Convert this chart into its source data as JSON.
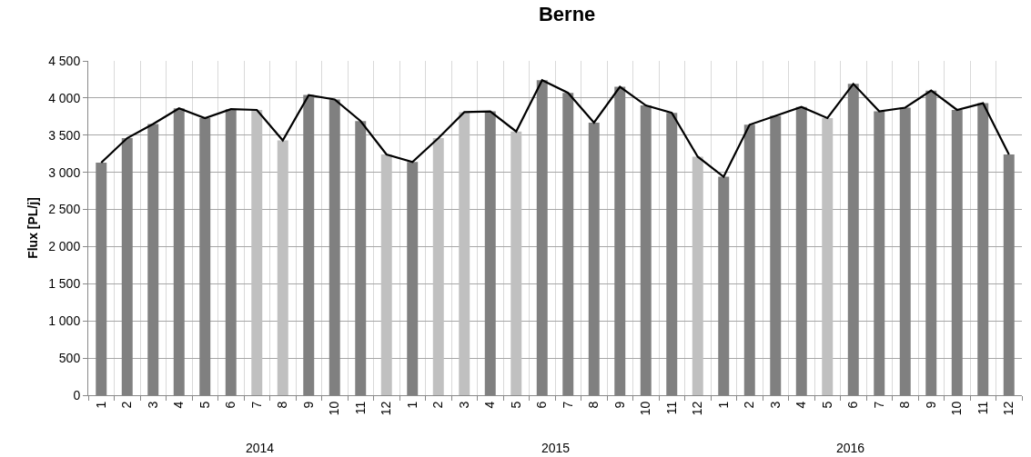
{
  "chart_data": {
    "type": "bar",
    "title": "Berne",
    "ylabel": "Flux [PL/j]",
    "categories": [
      "1",
      "2",
      "3",
      "4",
      "5",
      "6",
      "7",
      "8",
      "9",
      "10",
      "11",
      "12",
      "1",
      "2",
      "3",
      "4",
      "5",
      "6",
      "7",
      "8",
      "9",
      "10",
      "11",
      "12",
      "1",
      "2",
      "3",
      "4",
      "5",
      "6",
      "7",
      "8",
      "9",
      "10",
      "11",
      "12"
    ],
    "series": [
      {
        "colors": [
          "#808080",
          "#808080",
          "#808080",
          "#808080",
          "#808080",
          "#808080",
          "#c0c0c0",
          "#c0c0c0",
          "#808080",
          "#808080",
          "#808080",
          "#c0c0c0",
          "#808080",
          "#c0c0c0",
          "#c0c0c0",
          "#808080",
          "#c0c0c0",
          "#808080",
          "#808080",
          "#808080",
          "#808080",
          "#808080",
          "#808080",
          "#c0c0c0",
          "#808080",
          "#808080",
          "#808080",
          "#808080",
          "#c0c0c0",
          "#808080",
          "#808080",
          "#808080",
          "#808080",
          "#808080",
          "#808080",
          "#808080"
        ],
        "values": [
          3130,
          3460,
          3650,
          3860,
          3730,
          3850,
          3840,
          3430,
          4040,
          3980,
          3690,
          3240,
          3140,
          3460,
          3810,
          3820,
          3550,
          4240,
          4070,
          3670,
          4150,
          3900,
          3800,
          3210,
          2940,
          3640,
          3760,
          3880,
          3730,
          4190,
          3820,
          3870,
          4100,
          3840,
          3930,
          3240
        ]
      },
      {
        "type": "line",
        "color": "#000000",
        "marker": "none",
        "line_style": "solid",
        "values": [
          3130,
          3460,
          3650,
          3860,
          3730,
          3850,
          3840,
          3430,
          4040,
          3980,
          3690,
          3240,
          3140,
          3460,
          3810,
          3820,
          3550,
          4240,
          4070,
          3670,
          4150,
          3900,
          3800,
          3210,
          2940,
          3640,
          3760,
          3880,
          3730,
          4190,
          3820,
          3870,
          4100,
          3840,
          3930,
          3240
        ]
      }
    ],
    "ylim": [
      0,
      4500
    ],
    "yticks": [
      0,
      500,
      {
        "value": 1000,
        "label": "1 000"
      },
      {
        "value": 1500,
        "label": "1 500"
      },
      {
        "value": 2000,
        "label": "2 000"
      },
      {
        "value": 2500,
        "label": "2 500"
      },
      {
        "value": 3000,
        "label": "3 000"
      },
      {
        "value": 3500,
        "label": "3 500"
      },
      {
        "value": 4000,
        "label": "4 000"
      },
      {
        "value": 4500,
        "label": "4 500"
      }
    ],
    "grid": true,
    "annotations": [
      "2014",
      "2015",
      "2016"
    ]
  }
}
